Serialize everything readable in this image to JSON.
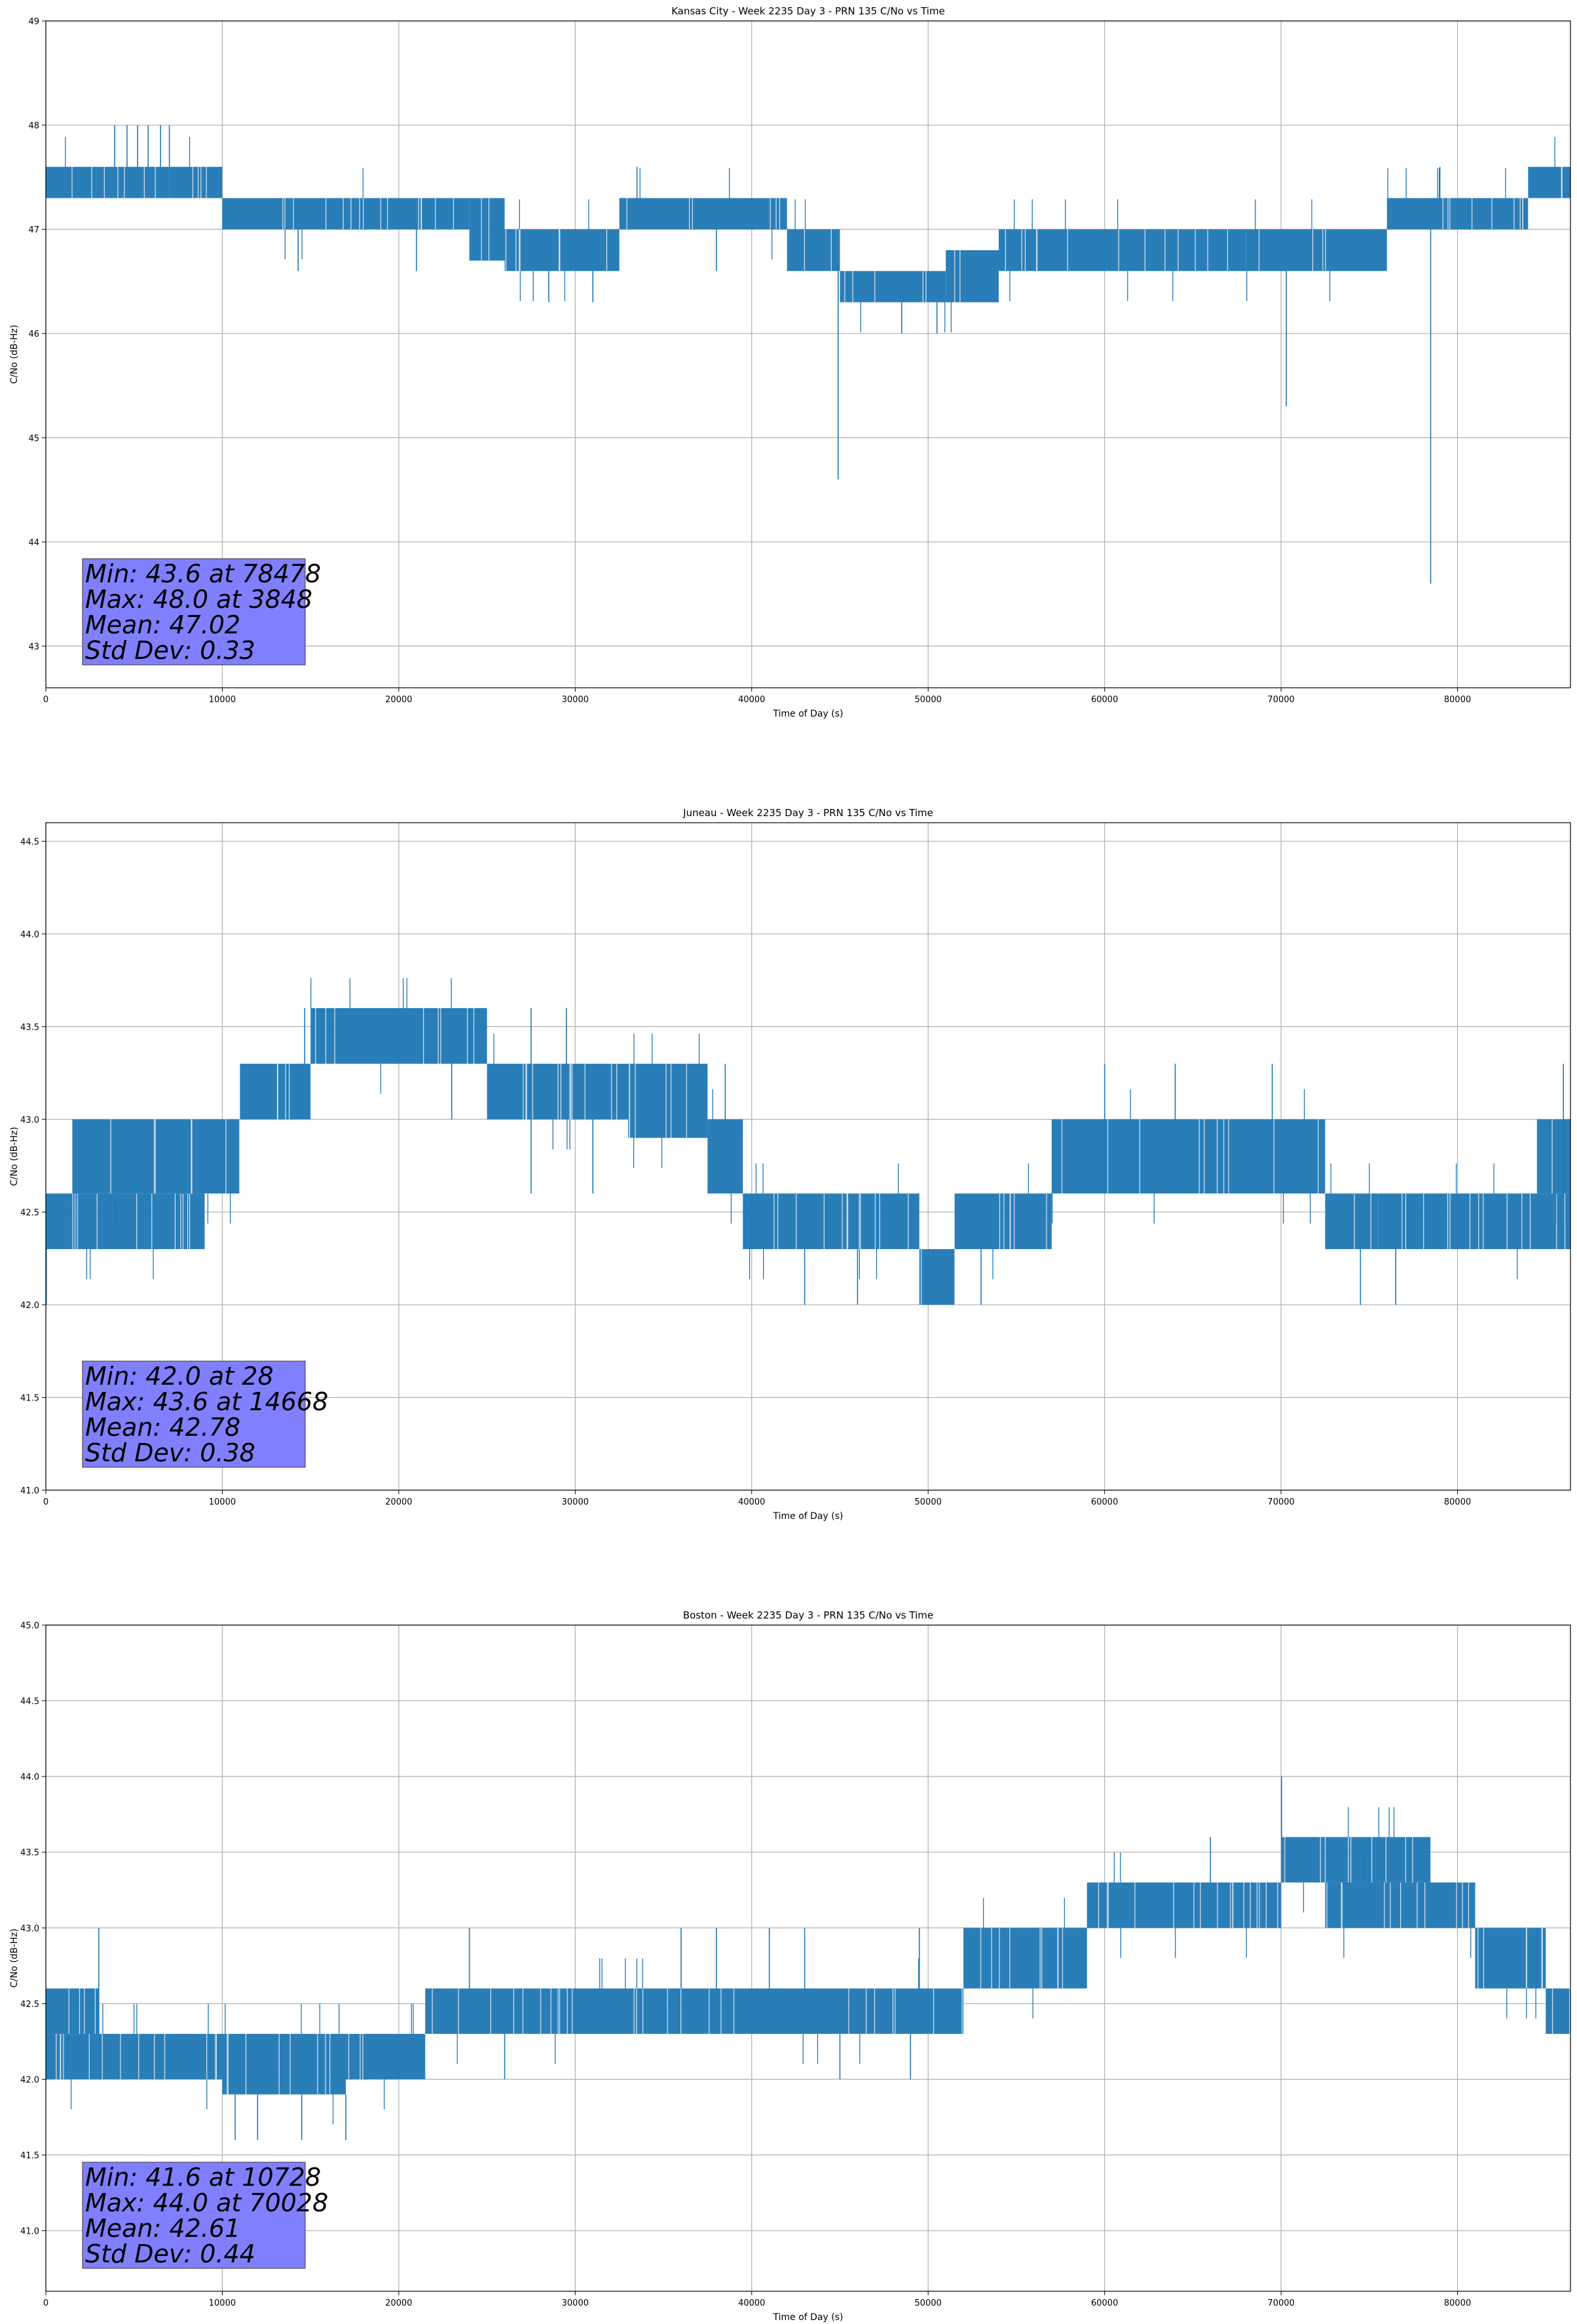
{
  "chart_data": [
    {
      "type": "line",
      "title": "Kansas City - Week 2235 Day 3 - PRN 135 C/No vs Time",
      "xlabel": "Time of Day (s)",
      "ylabel": "C/No (dB-Hz)",
      "xlim": [
        0,
        86400
      ],
      "ylim": [
        42.6,
        49.0
      ],
      "xticks": [
        0,
        10000,
        20000,
        30000,
        40000,
        50000,
        60000,
        70000,
        80000
      ],
      "yticks": [
        43,
        44,
        45,
        46,
        47,
        48,
        49
      ],
      "grid": true,
      "line_color": "#1f77b4",
      "series": [
        {
          "bands": [
            {
              "x0": 0,
              "x1": 7000,
              "lo": 47.3,
              "hi": 47.6
            },
            {
              "x0": 7000,
              "x1": 10000,
              "lo": 47.3,
              "hi": 47.6
            },
            {
              "x0": 10000,
              "x1": 24000,
              "lo": 47.0,
              "hi": 47.3
            },
            {
              "x0": 24000,
              "x1": 26000,
              "lo": 46.7,
              "hi": 47.3
            },
            {
              "x0": 26000,
              "x1": 32500,
              "lo": 46.6,
              "hi": 47.0
            },
            {
              "x0": 32500,
              "x1": 42000,
              "lo": 47.0,
              "hi": 47.3
            },
            {
              "x0": 42000,
              "x1": 45000,
              "lo": 46.6,
              "hi": 47.0
            },
            {
              "x0": 45000,
              "x1": 51000,
              "lo": 46.3,
              "hi": 46.6
            },
            {
              "x0": 51000,
              "x1": 54000,
              "lo": 46.3,
              "hi": 46.8
            },
            {
              "x0": 54000,
              "x1": 68000,
              "lo": 46.6,
              "hi": 47.0
            },
            {
              "x0": 68000,
              "x1": 76000,
              "lo": 46.6,
              "hi": 47.0
            },
            {
              "x0": 76000,
              "x1": 84000,
              "lo": 47.0,
              "hi": 47.3
            },
            {
              "x0": 84000,
              "x1": 86400,
              "lo": 47.3,
              "hi": 47.6
            }
          ],
          "spikes": [
            {
              "x": 3900,
              "y": 48.0
            },
            {
              "x": 4600,
              "y": 48.0
            },
            {
              "x": 5200,
              "y": 48.0
            },
            {
              "x": 5800,
              "y": 48.0
            },
            {
              "x": 6500,
              "y": 48.0
            },
            {
              "x": 7000,
              "y": 48.0
            },
            {
              "x": 14300,
              "y": 46.6
            },
            {
              "x": 21000,
              "y": 46.6
            },
            {
              "x": 28500,
              "y": 46.3
            },
            {
              "x": 31000,
              "y": 46.3
            },
            {
              "x": 33500,
              "y": 47.6
            },
            {
              "x": 38000,
              "y": 46.6
            },
            {
              "x": 44900,
              "y": 44.6
            },
            {
              "x": 48500,
              "y": 46.0
            },
            {
              "x": 50500,
              "y": 46.0
            },
            {
              "x": 70300,
              "y": 45.3
            },
            {
              "x": 78478,
              "y": 43.6
            },
            {
              "x": 79000,
              "y": 47.6
            }
          ]
        }
      ],
      "stats": [
        "Min: 43.6 at 78478",
        "Max: 48.0 at 3848",
        "Mean: 47.02",
        "Std Dev: 0.33"
      ]
    },
    {
      "type": "line",
      "title": "Juneau - Week 2235 Day 3 - PRN 135 C/No vs Time",
      "xlabel": "Time of Day (s)",
      "ylabel": "C/No (dB-Hz)",
      "xlim": [
        0,
        86400
      ],
      "ylim": [
        41.0,
        44.6
      ],
      "xticks": [
        0,
        10000,
        20000,
        30000,
        40000,
        50000,
        60000,
        70000,
        80000
      ],
      "yticks": [
        41.0,
        41.5,
        42.0,
        42.5,
        43.0,
        43.5,
        44.0,
        44.5
      ],
      "grid": true,
      "line_color": "#1f77b4",
      "series": [
        {
          "bands": [
            {
              "x0": 0,
              "x1": 9000,
              "lo": 42.3,
              "hi": 42.6
            },
            {
              "x0": 1500,
              "x1": 8500,
              "lo": 42.6,
              "hi": 43.0
            },
            {
              "x0": 8500,
              "x1": 11000,
              "lo": 42.6,
              "hi": 43.0
            },
            {
              "x0": 11000,
              "x1": 15000,
              "lo": 43.0,
              "hi": 43.3
            },
            {
              "x0": 15000,
              "x1": 25000,
              "lo": 43.3,
              "hi": 43.6
            },
            {
              "x0": 25000,
              "x1": 33000,
              "lo": 43.0,
              "hi": 43.3
            },
            {
              "x0": 33000,
              "x1": 37500,
              "lo": 42.9,
              "hi": 43.3
            },
            {
              "x0": 37500,
              "x1": 39500,
              "lo": 42.6,
              "hi": 43.0
            },
            {
              "x0": 39500,
              "x1": 49500,
              "lo": 42.3,
              "hi": 42.6
            },
            {
              "x0": 49500,
              "x1": 51500,
              "lo": 42.0,
              "hi": 42.3
            },
            {
              "x0": 51500,
              "x1": 57000,
              "lo": 42.3,
              "hi": 42.6
            },
            {
              "x0": 57000,
              "x1": 72500,
              "lo": 42.6,
              "hi": 43.0
            },
            {
              "x0": 72500,
              "x1": 75500,
              "lo": 42.3,
              "hi": 42.6
            },
            {
              "x0": 75500,
              "x1": 86400,
              "lo": 42.3,
              "hi": 42.6
            },
            {
              "x0": 84500,
              "x1": 86400,
              "lo": 42.6,
              "hi": 43.0
            }
          ],
          "spikes": [
            {
              "x": 28,
              "y": 42.0
            },
            {
              "x": 1500,
              "y": 42.3
            },
            {
              "x": 14668,
              "y": 43.6
            },
            {
              "x": 23000,
              "y": 43.0
            },
            {
              "x": 27500,
              "y": 43.6
            },
            {
              "x": 29500,
              "y": 43.6
            },
            {
              "x": 27500,
              "y": 42.6
            },
            {
              "x": 31000,
              "y": 42.6
            },
            {
              "x": 38500,
              "y": 43.3
            },
            {
              "x": 43000,
              "y": 42.0
            },
            {
              "x": 46000,
              "y": 42.0
            },
            {
              "x": 53000,
              "y": 42.0
            },
            {
              "x": 60000,
              "y": 43.3
            },
            {
              "x": 64000,
              "y": 43.3
            },
            {
              "x": 69500,
              "y": 43.3
            },
            {
              "x": 74500,
              "y": 42.0
            },
            {
              "x": 76500,
              "y": 42.0
            },
            {
              "x": 86000,
              "y": 43.3
            }
          ]
        }
      ],
      "stats": [
        "Min: 42.0 at 28",
        "Max: 43.6 at 14668",
        "Mean: 42.78",
        "Std Dev: 0.38"
      ]
    },
    {
      "type": "line",
      "title": "Boston - Week 2235 Day 3 - PRN 135 C/No vs Time",
      "xlabel": "Time of Day (s)",
      "ylabel": "C/No (dB-Hz)",
      "xlim": [
        0,
        86400
      ],
      "ylim": [
        40.6,
        45.0
      ],
      "xticks": [
        0,
        10000,
        20000,
        30000,
        40000,
        50000,
        60000,
        70000,
        80000
      ],
      "yticks": [
        41.0,
        41.5,
        42.0,
        42.5,
        43.0,
        43.5,
        44.0,
        44.5,
        45.0
      ],
      "grid": true,
      "line_color": "#1f77b4",
      "series": [
        {
          "bands": [
            {
              "x0": 0,
              "x1": 10000,
              "lo": 42.0,
              "hi": 42.3
            },
            {
              "x0": 0,
              "x1": 3000,
              "lo": 42.3,
              "hi": 42.6
            },
            {
              "x0": 10000,
              "x1": 17000,
              "lo": 41.9,
              "hi": 42.3
            },
            {
              "x0": 17000,
              "x1": 21500,
              "lo": 42.0,
              "hi": 42.3
            },
            {
              "x0": 21500,
              "x1": 33500,
              "lo": 42.3,
              "hi": 42.6
            },
            {
              "x0": 33500,
              "x1": 52000,
              "lo": 42.3,
              "hi": 42.6
            },
            {
              "x0": 52000,
              "x1": 59000,
              "lo": 42.6,
              "hi": 43.0
            },
            {
              "x0": 59000,
              "x1": 70000,
              "lo": 43.0,
              "hi": 43.3
            },
            {
              "x0": 70000,
              "x1": 78500,
              "lo": 43.3,
              "hi": 43.6
            },
            {
              "x0": 72500,
              "x1": 81000,
              "lo": 43.0,
              "hi": 43.3
            },
            {
              "x0": 81000,
              "x1": 85000,
              "lo": 42.6,
              "hi": 43.0
            },
            {
              "x0": 85000,
              "x1": 86400,
              "lo": 42.3,
              "hi": 42.6
            }
          ],
          "spikes": [
            {
              "x": 3000,
              "y": 43.0
            },
            {
              "x": 10728,
              "y": 41.6
            },
            {
              "x": 12000,
              "y": 41.6
            },
            {
              "x": 14500,
              "y": 41.6
            },
            {
              "x": 17000,
              "y": 41.6
            },
            {
              "x": 24000,
              "y": 43.0
            },
            {
              "x": 26000,
              "y": 42.0
            },
            {
              "x": 36000,
              "y": 43.0
            },
            {
              "x": 38000,
              "y": 43.0
            },
            {
              "x": 41000,
              "y": 43.0
            },
            {
              "x": 43000,
              "y": 43.0
            },
            {
              "x": 45000,
              "y": 42.0
            },
            {
              "x": 49000,
              "y": 42.0
            },
            {
              "x": 49500,
              "y": 43.0
            },
            {
              "x": 66000,
              "y": 43.6
            },
            {
              "x": 70028,
              "y": 44.0
            },
            {
              "x": 75000,
              "y": 43.6
            },
            {
              "x": 84500,
              "y": 43.0
            }
          ]
        }
      ],
      "stats": [
        "Min: 41.6 at 10728",
        "Max: 44.0 at 70028",
        "Mean: 42.61",
        "Std Dev: 0.44"
      ]
    }
  ]
}
